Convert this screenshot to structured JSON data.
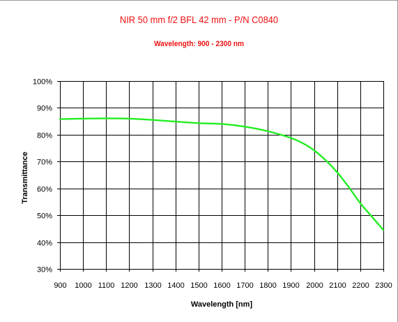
{
  "chart_data": {
    "type": "line",
    "title": "NIR 50 mm f/2 BFL 42 mm - P/N C0840",
    "subtitle": "Wavelength: 900 - 2300 nm",
    "xlabel": "Wavelength [nm]",
    "ylabel": "Transmittance",
    "xlim": [
      900,
      2300
    ],
    "ylim": [
      30,
      100
    ],
    "x_ticks": [
      900,
      1000,
      1100,
      1200,
      1300,
      1400,
      1500,
      1600,
      1700,
      1800,
      1900,
      2000,
      2100,
      2200,
      2300
    ],
    "y_ticks": [
      30,
      40,
      50,
      60,
      70,
      80,
      90,
      100
    ],
    "x_tick_labels": [
      "900",
      "1000",
      "1100",
      "1200",
      "1300",
      "1400",
      "1500",
      "1600",
      "1700",
      "1800",
      "1900",
      "2000",
      "2100",
      "2200",
      "2300"
    ],
    "y_tick_labels": [
      "30%",
      "40%",
      "50%",
      "60%",
      "70%",
      "80%",
      "90%",
      "100%"
    ],
    "grid": true,
    "series": [
      {
        "color": "#22ee22",
        "x": [
          900,
          1000,
          1100,
          1200,
          1300,
          1400,
          1500,
          1600,
          1700,
          1800,
          1900,
          1950,
          2000,
          2050,
          2100,
          2150,
          2200,
          2250,
          2300
        ],
        "y": [
          85.8,
          86.0,
          86.1,
          86.0,
          85.5,
          84.9,
          84.3,
          84.0,
          83.0,
          81.3,
          78.8,
          76.9,
          74.2,
          70.5,
          66.0,
          60.5,
          54.5,
          49.5,
          44.5
        ]
      }
    ]
  }
}
